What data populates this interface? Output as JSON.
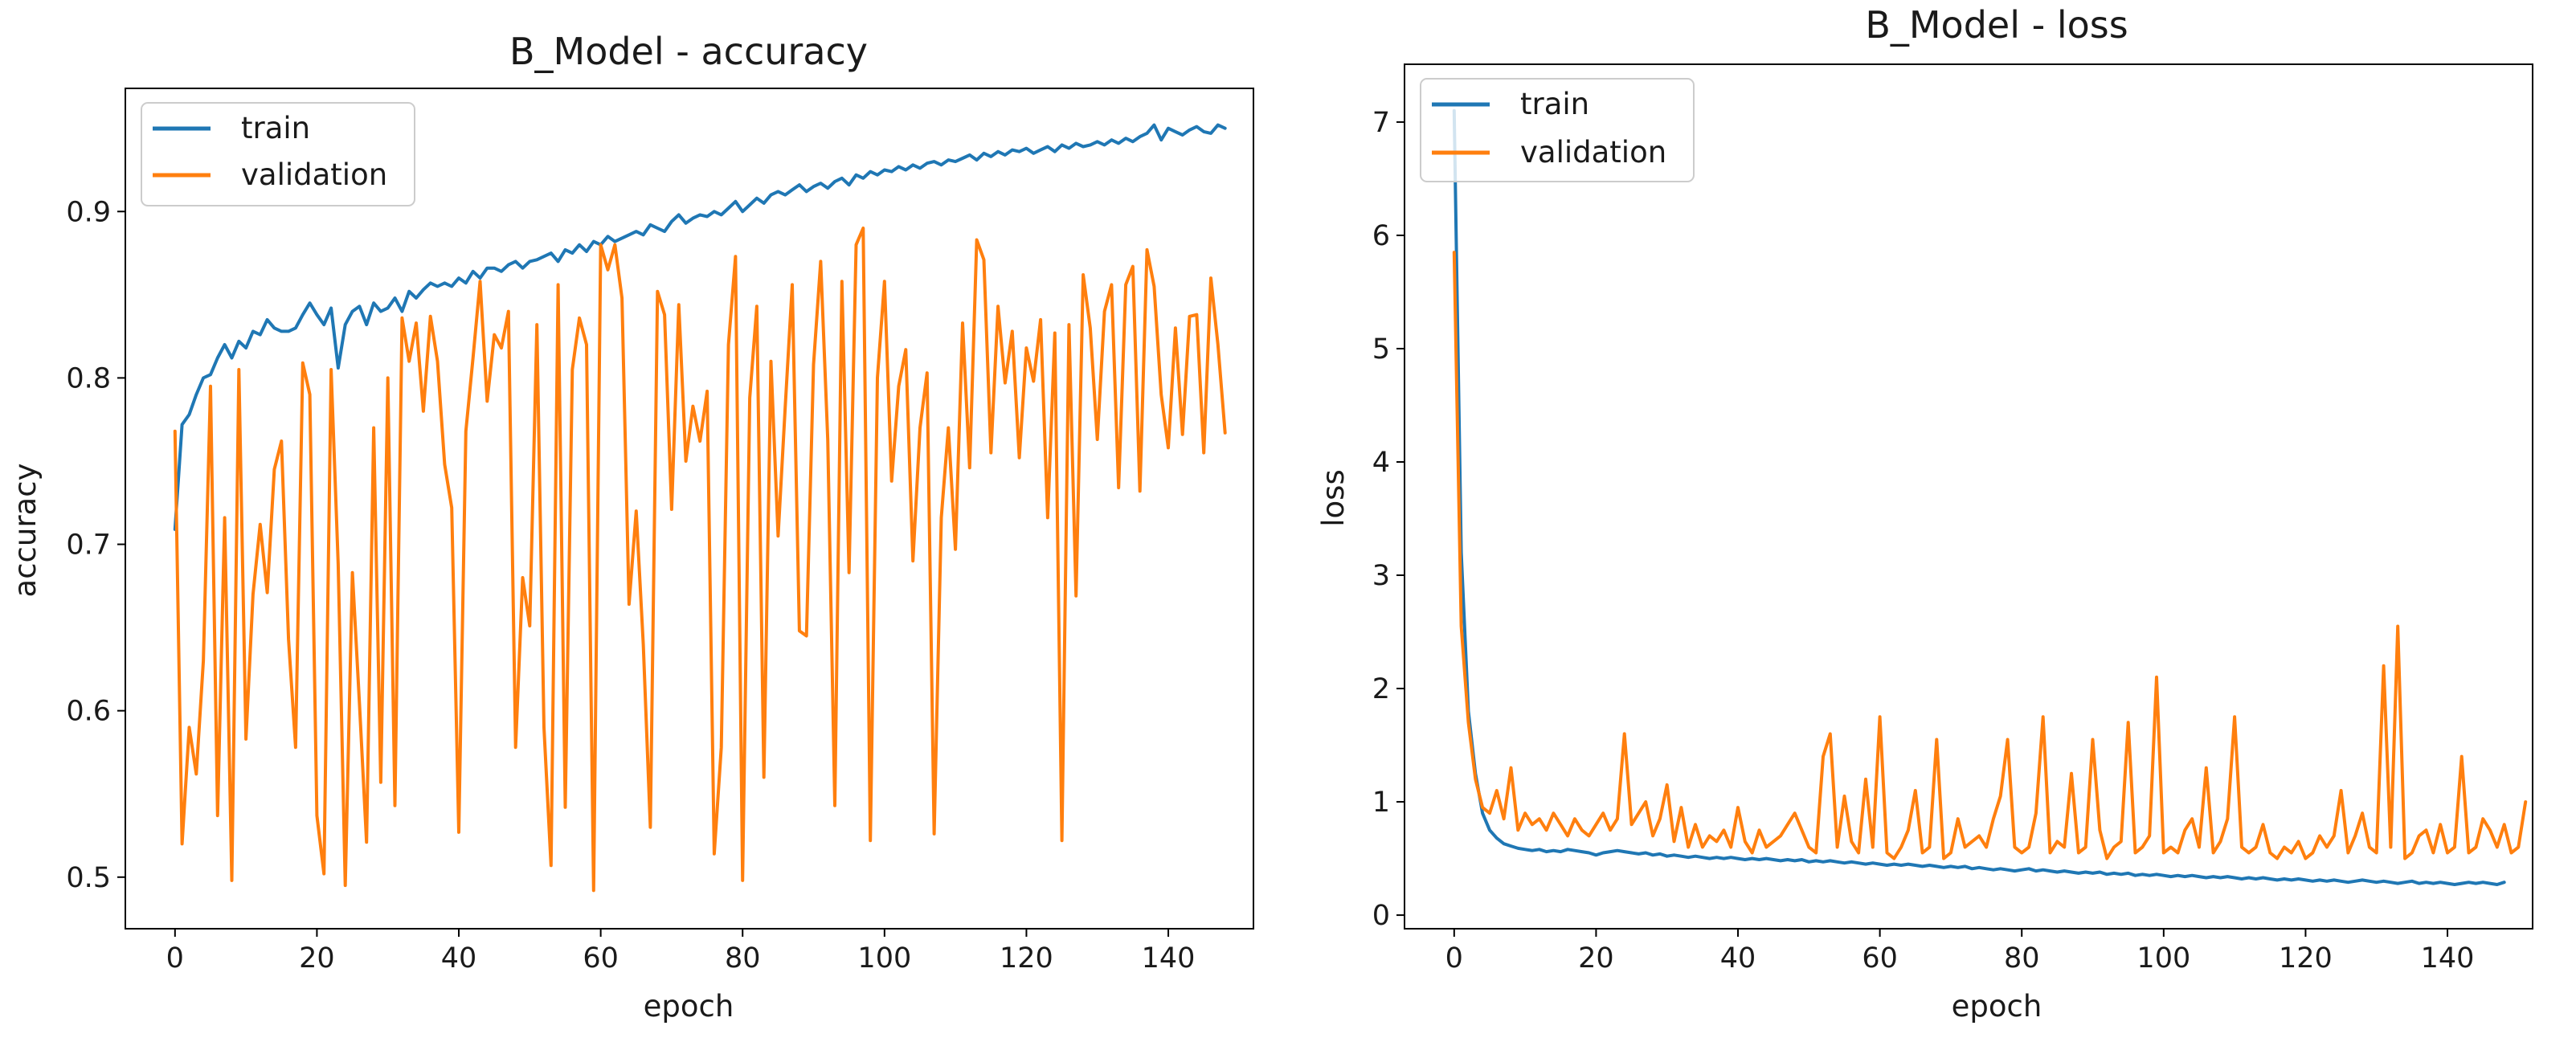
{
  "chart_data": [
    {
      "id": "acc",
      "type": "line",
      "title": "B_Model - accuracy",
      "xlabel": "epoch",
      "ylabel": "accuracy",
      "xlim": [
        -7,
        152
      ],
      "ylim": [
        0.469,
        0.974
      ],
      "xticks": [
        0,
        20,
        40,
        60,
        80,
        100,
        120,
        140
      ],
      "yticks": [
        0.5,
        0.6,
        0.7,
        0.8,
        0.9
      ],
      "ytick_labels": [
        "0.5",
        "0.6",
        "0.7",
        "0.8",
        "0.9"
      ],
      "grid": false,
      "legend_position": "top-left",
      "series": [
        {
          "name": "train",
          "color": "#1f77b4",
          "values": [
            0.709,
            0.772,
            0.778,
            0.79,
            0.8,
            0.802,
            0.812,
            0.82,
            0.812,
            0.822,
            0.818,
            0.828,
            0.826,
            0.835,
            0.83,
            0.828,
            0.828,
            0.83,
            0.838,
            0.845,
            0.838,
            0.832,
            0.842,
            0.806,
            0.832,
            0.84,
            0.843,
            0.832,
            0.845,
            0.84,
            0.842,
            0.848,
            0.84,
            0.852,
            0.848,
            0.853,
            0.857,
            0.855,
            0.857,
            0.855,
            0.86,
            0.857,
            0.864,
            0.86,
            0.866,
            0.866,
            0.864,
            0.868,
            0.87,
            0.866,
            0.87,
            0.871,
            0.873,
            0.875,
            0.87,
            0.877,
            0.875,
            0.88,
            0.876,
            0.882,
            0.88,
            0.885,
            0.882,
            0.884,
            0.886,
            0.888,
            0.886,
            0.892,
            0.89,
            0.888,
            0.894,
            0.898,
            0.893,
            0.896,
            0.898,
            0.897,
            0.9,
            0.898,
            0.902,
            0.906,
            0.9,
            0.904,
            0.908,
            0.905,
            0.91,
            0.912,
            0.91,
            0.913,
            0.916,
            0.912,
            0.915,
            0.917,
            0.914,
            0.918,
            0.92,
            0.916,
            0.922,
            0.92,
            0.924,
            0.922,
            0.925,
            0.924,
            0.927,
            0.925,
            0.928,
            0.926,
            0.929,
            0.93,
            0.928,
            0.931,
            0.93,
            0.932,
            0.934,
            0.931,
            0.935,
            0.933,
            0.936,
            0.934,
            0.937,
            0.936,
            0.938,
            0.935,
            0.937,
            0.939,
            0.936,
            0.94,
            0.938,
            0.941,
            0.939,
            0.94,
            0.942,
            0.94,
            0.943,
            0.941,
            0.944,
            0.942,
            0.945,
            0.947,
            0.952,
            0.943,
            0.95,
            0.948,
            0.946,
            0.949,
            0.951,
            0.948,
            0.947,
            0.952,
            0.95
          ],
          "lw": 4
        },
        {
          "name": "validation",
          "color": "#ff7f0e",
          "values": [
            0.768,
            0.52,
            0.59,
            0.562,
            0.63,
            0.795,
            0.537,
            0.716,
            0.498,
            0.805,
            0.583,
            0.67,
            0.712,
            0.671,
            0.745,
            0.762,
            0.643,
            0.578,
            0.809,
            0.79,
            0.537,
            0.502,
            0.805,
            0.688,
            0.495,
            0.683,
            0.604,
            0.521,
            0.77,
            0.557,
            0.8,
            0.543,
            0.836,
            0.81,
            0.833,
            0.78,
            0.837,
            0.81,
            0.748,
            0.722,
            0.527,
            0.768,
            0.812,
            0.858,
            0.786,
            0.826,
            0.818,
            0.84,
            0.578,
            0.68,
            0.651,
            0.832,
            0.59,
            0.507,
            0.856,
            0.542,
            0.805,
            0.836,
            0.82,
            0.492,
            0.88,
            0.865,
            0.88,
            0.848,
            0.664,
            0.72,
            0.64,
            0.53,
            0.852,
            0.838,
            0.721,
            0.844,
            0.75,
            0.783,
            0.762,
            0.792,
            0.514,
            0.578,
            0.82,
            0.873,
            0.498,
            0.788,
            0.843,
            0.56,
            0.81,
            0.705,
            0.782,
            0.856,
            0.648,
            0.645,
            0.808,
            0.87,
            0.763,
            0.543,
            0.858,
            0.683,
            0.88,
            0.89,
            0.522,
            0.8,
            0.858,
            0.738,
            0.795,
            0.817,
            0.69,
            0.77,
            0.803,
            0.526,
            0.716,
            0.77,
            0.697,
            0.833,
            0.746,
            0.883,
            0.871,
            0.755,
            0.843,
            0.797,
            0.828,
            0.752,
            0.818,
            0.798,
            0.835,
            0.716,
            0.827,
            0.522,
            0.832,
            0.669,
            0.862,
            0.83,
            0.763,
            0.84,
            0.856,
            0.734,
            0.856,
            0.867,
            0.732,
            0.877,
            0.855,
            0.79,
            0.758,
            0.83,
            0.766,
            0.837,
            0.838,
            0.755,
            0.86,
            0.82,
            0.767
          ],
          "lw": 4
        }
      ]
    },
    {
      "id": "loss",
      "type": "line",
      "title": "B_Model - loss",
      "xlabel": "epoch",
      "ylabel": "loss",
      "xlim": [
        -7,
        152
      ],
      "ylim": [
        -0.12,
        7.51
      ],
      "xticks": [
        0,
        20,
        40,
        60,
        80,
        100,
        120,
        140
      ],
      "yticks": [
        0,
        1,
        2,
        3,
        4,
        5,
        6,
        7
      ],
      "ytick_labels": [
        "0",
        "1",
        "2",
        "3",
        "4",
        "5",
        "6",
        "7"
      ],
      "grid": false,
      "legend_position": "top-left",
      "series": [
        {
          "name": "train",
          "color": "#1f77b4",
          "values": [
            7.1,
            3.2,
            1.8,
            1.25,
            0.9,
            0.75,
            0.68,
            0.63,
            0.61,
            0.59,
            0.58,
            0.57,
            0.58,
            0.56,
            0.57,
            0.56,
            0.58,
            0.57,
            0.56,
            0.55,
            0.53,
            0.55,
            0.56,
            0.57,
            0.56,
            0.55,
            0.54,
            0.55,
            0.53,
            0.54,
            0.52,
            0.53,
            0.52,
            0.51,
            0.52,
            0.51,
            0.5,
            0.51,
            0.5,
            0.51,
            0.5,
            0.49,
            0.5,
            0.49,
            0.5,
            0.49,
            0.48,
            0.49,
            0.48,
            0.49,
            0.47,
            0.48,
            0.47,
            0.48,
            0.47,
            0.46,
            0.47,
            0.46,
            0.45,
            0.46,
            0.45,
            0.44,
            0.45,
            0.44,
            0.45,
            0.44,
            0.43,
            0.44,
            0.43,
            0.42,
            0.43,
            0.42,
            0.43,
            0.41,
            0.42,
            0.41,
            0.4,
            0.41,
            0.4,
            0.39,
            0.4,
            0.41,
            0.39,
            0.4,
            0.39,
            0.38,
            0.39,
            0.38,
            0.37,
            0.38,
            0.37,
            0.38,
            0.36,
            0.37,
            0.36,
            0.37,
            0.35,
            0.36,
            0.35,
            0.36,
            0.35,
            0.34,
            0.35,
            0.34,
            0.35,
            0.34,
            0.33,
            0.34,
            0.33,
            0.34,
            0.33,
            0.32,
            0.33,
            0.32,
            0.33,
            0.32,
            0.31,
            0.32,
            0.31,
            0.32,
            0.31,
            0.3,
            0.31,
            0.3,
            0.31,
            0.3,
            0.29,
            0.3,
            0.31,
            0.3,
            0.29,
            0.3,
            0.29,
            0.28,
            0.29,
            0.3,
            0.28,
            0.29,
            0.28,
            0.29,
            0.28,
            0.27,
            0.28,
            0.29,
            0.28,
            0.29,
            0.28,
            0.27,
            0.29
          ],
          "lw": 4
        },
        {
          "name": "validation",
          "color": "#ff7f0e",
          "values": [
            5.85,
            2.55,
            1.7,
            1.2,
            0.95,
            0.9,
            1.1,
            0.85,
            1.3,
            0.75,
            0.9,
            0.8,
            0.85,
            0.75,
            0.9,
            0.8,
            0.7,
            0.85,
            0.75,
            0.7,
            0.8,
            0.9,
            0.75,
            0.85,
            1.6,
            0.8,
            0.9,
            1.0,
            0.7,
            0.85,
            1.15,
            0.65,
            0.95,
            0.6,
            0.8,
            0.6,
            0.7,
            0.65,
            0.75,
            0.6,
            0.95,
            0.65,
            0.55,
            0.75,
            0.6,
            0.65,
            0.7,
            0.8,
            0.9,
            0.75,
            0.6,
            0.55,
            1.4,
            1.6,
            0.6,
            1.05,
            0.65,
            0.55,
            1.2,
            0.6,
            1.75,
            0.55,
            0.5,
            0.6,
            0.75,
            1.1,
            0.55,
            0.6,
            1.55,
            0.5,
            0.55,
            0.85,
            0.6,
            0.65,
            0.7,
            0.6,
            0.85,
            1.05,
            1.55,
            0.6,
            0.55,
            0.6,
            0.9,
            1.75,
            0.55,
            0.65,
            0.6,
            1.25,
            0.55,
            0.6,
            1.55,
            0.75,
            0.5,
            0.6,
            0.65,
            1.7,
            0.55,
            0.6,
            0.7,
            2.1,
            0.55,
            0.6,
            0.55,
            0.75,
            0.85,
            0.6,
            1.3,
            0.55,
            0.65,
            0.85,
            1.75,
            0.6,
            0.55,
            0.6,
            0.8,
            0.55,
            0.5,
            0.6,
            0.55,
            0.65,
            0.5,
            0.55,
            0.7,
            0.6,
            0.7,
            1.1,
            0.55,
            0.7,
            0.9,
            0.6,
            0.55,
            2.2,
            0.6,
            2.55,
            0.5,
            0.55,
            0.7,
            0.75,
            0.55,
            0.8,
            0.55,
            0.6,
            1.4,
            0.55,
            0.6,
            0.85,
            0.75,
            0.6,
            0.8,
            0.55,
            0.6,
            1.0
          ],
          "lw": 4
        }
      ]
    }
  ]
}
